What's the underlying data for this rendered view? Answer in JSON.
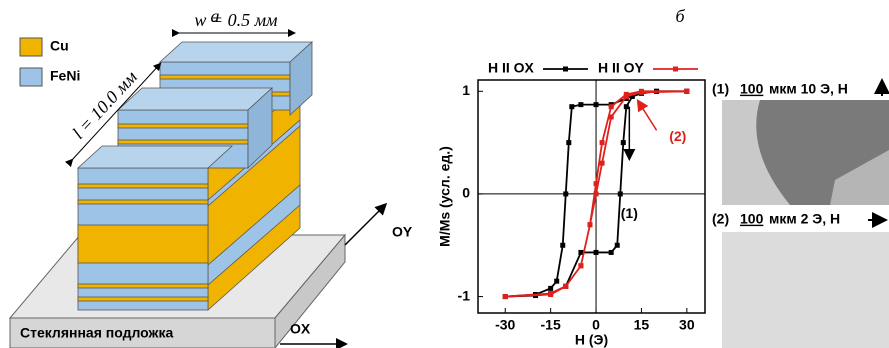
{
  "panel_a": {
    "label": "а",
    "legend": [
      "Cu",
      "FeNi"
    ],
    "width_label": "w = 0.5 мм",
    "length_label": "l = 10.0 мм",
    "substrate": "Стеклянная подложка",
    "axis_x": "OX",
    "axis_y": "OY"
  },
  "panel_b": {
    "label": "б"
  },
  "chart_data": {
    "type": "line",
    "xlabel": "H (Э)",
    "ylabel": "M/Ms (усл. ед.)",
    "xlim": [
      -39,
      36
    ],
    "ylim": [
      -1.16,
      1.11
    ],
    "xticks": [
      -30,
      -15,
      0,
      15,
      30
    ],
    "yticks": [
      -1,
      0,
      1
    ],
    "series": [
      {
        "name": "H II OX",
        "color": "#000000",
        "x": [
          30,
          20,
          15,
          10,
          5,
          0,
          -5,
          -8,
          -9,
          -10,
          -11,
          -13,
          -15,
          -20,
          -30,
          -20,
          -15,
          -10,
          -5,
          0,
          5,
          7,
          8,
          9,
          10,
          12,
          15,
          20,
          30
        ],
        "values": [
          1,
          1,
          0.99,
          0.93,
          0.87,
          0.87,
          0.87,
          0.85,
          0.5,
          0,
          -0.5,
          -0.85,
          -0.92,
          -0.98,
          -1,
          -0.99,
          -0.97,
          -0.9,
          -0.57,
          -0.57,
          -0.57,
          -0.5,
          0,
          0.5,
          0.85,
          0.95,
          0.98,
          1,
          1
        ]
      },
      {
        "name": "H II OY",
        "color": "#e0201b",
        "x": [
          30,
          15,
          10,
          5,
          2,
          0,
          -2,
          -5,
          -10,
          -15,
          -30,
          -15,
          -10,
          -5,
          -2,
          0,
          2,
          5,
          10,
          15,
          30
        ],
        "values": [
          1,
          1,
          0.97,
          0.85,
          0.5,
          0.1,
          -0.3,
          -0.7,
          -0.9,
          -0.98,
          -1,
          -0.97,
          -0.9,
          -0.7,
          -0.3,
          0,
          0.3,
          0.75,
          0.95,
          0.99,
          1
        ]
      }
    ],
    "annotations": [
      "(1)",
      "(2)"
    ]
  },
  "micrographs": [
    {
      "number": "(1)",
      "scale": "100",
      "text": "мкм 10 Э, H"
    },
    {
      "number": "(2)",
      "scale": "100",
      "text": "мкм 2 Э, H"
    }
  ]
}
